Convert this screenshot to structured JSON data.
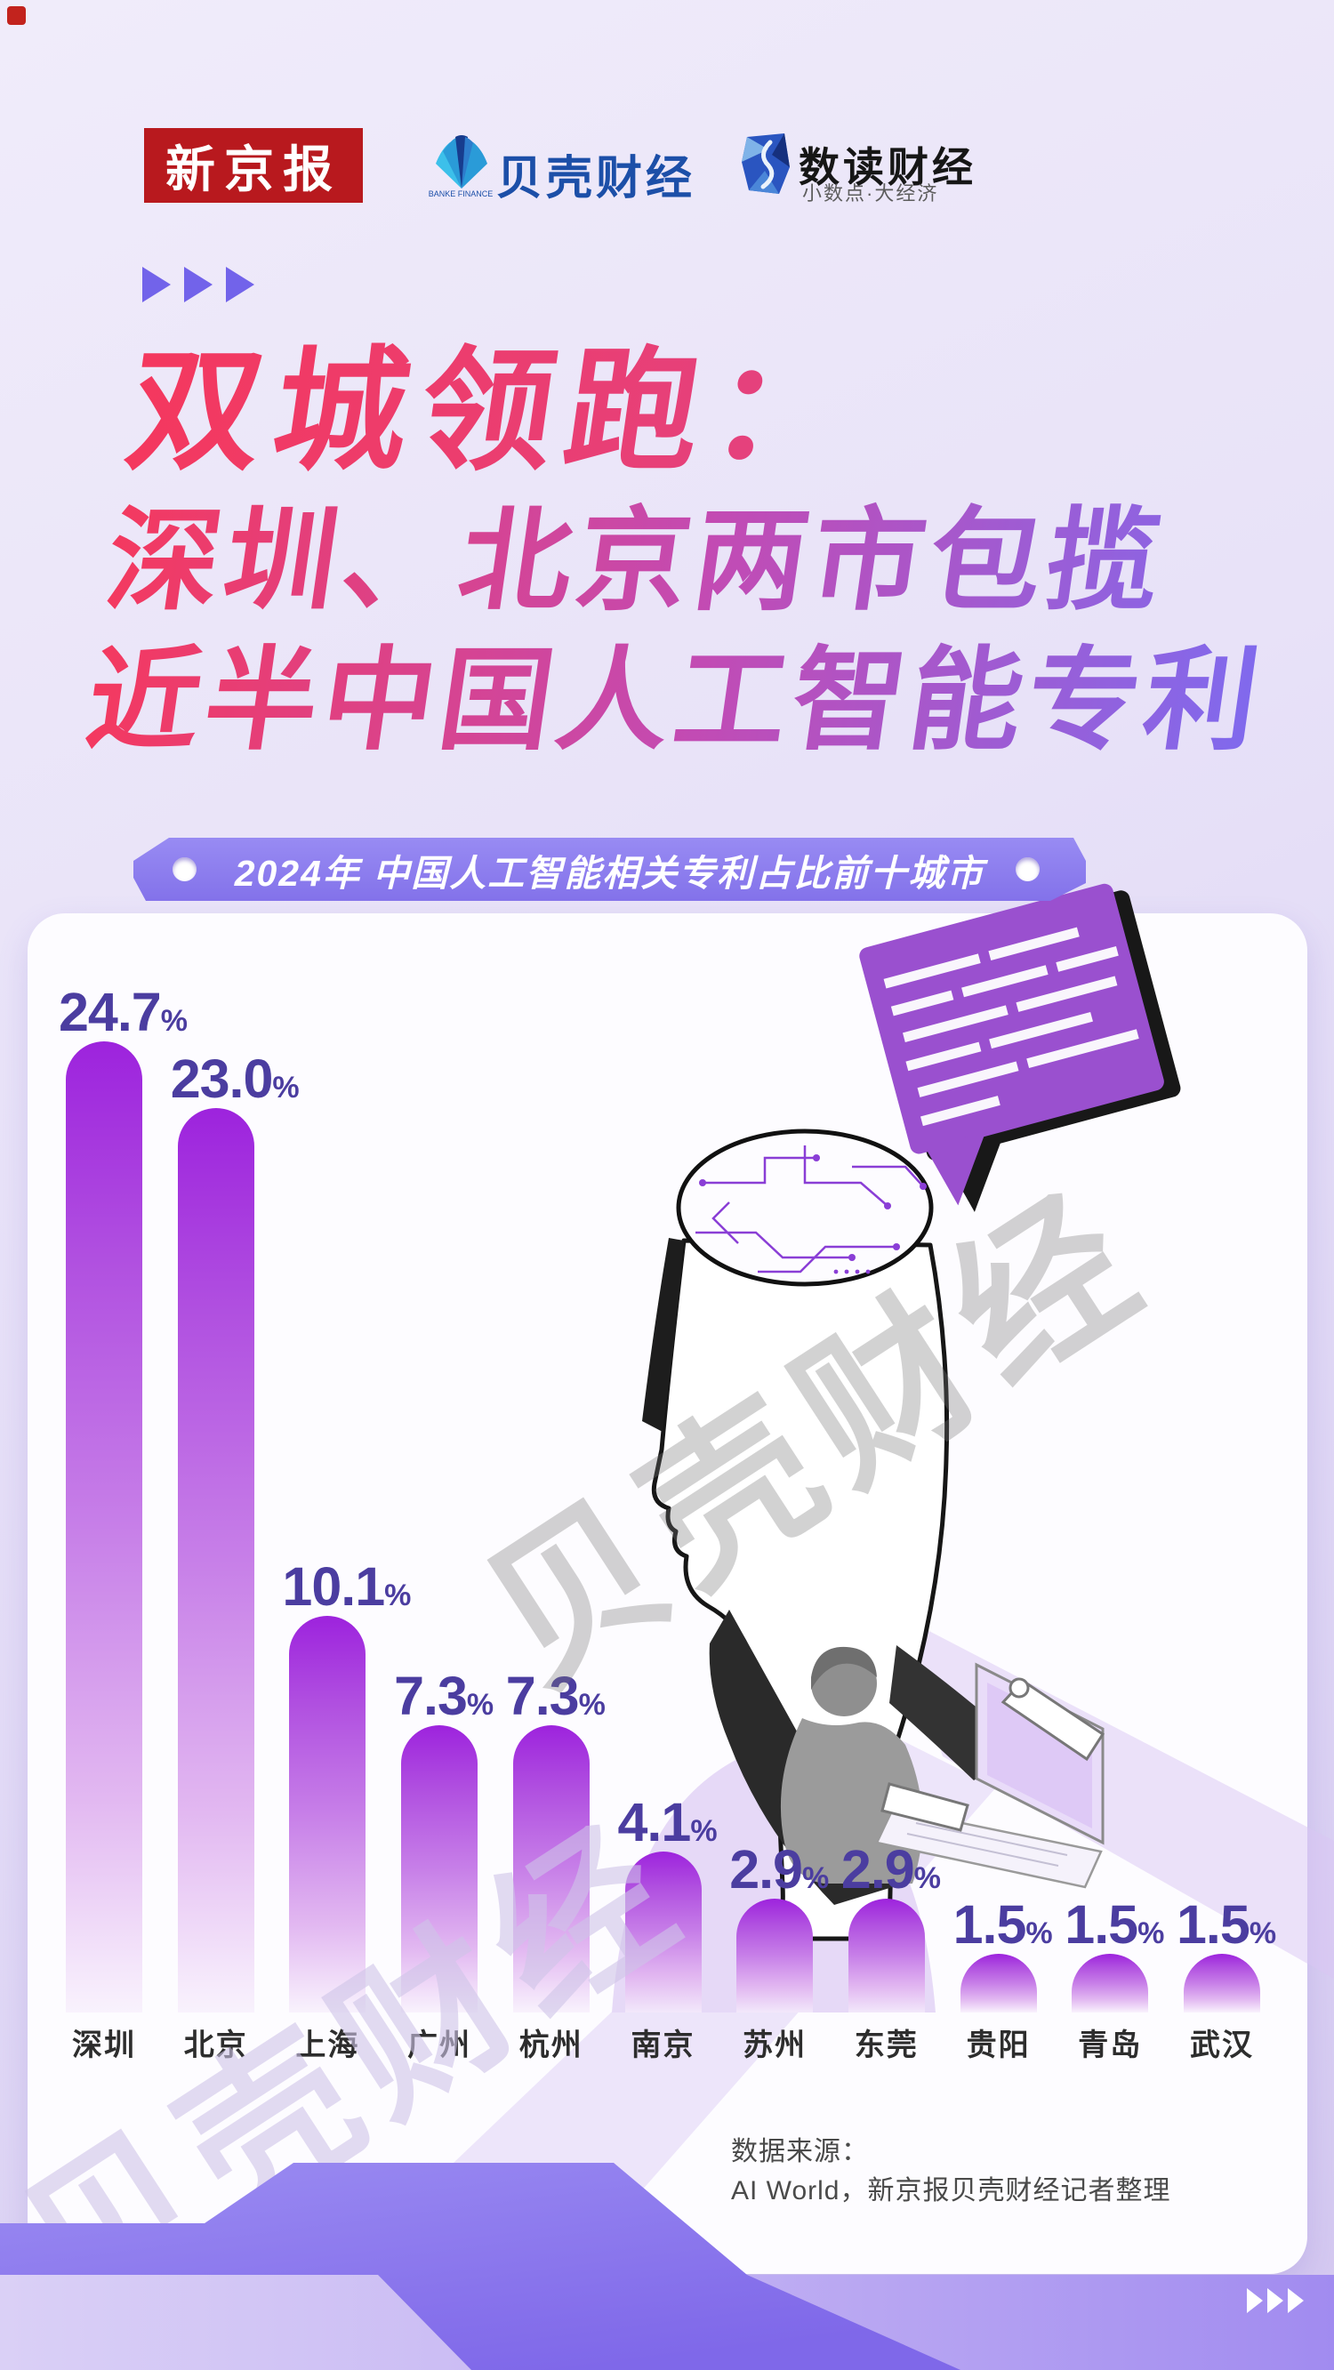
{
  "header": {
    "brand_xjb": "新京报",
    "brand_bk": "贝壳财经",
    "brand_bk_caption": "BANKE FINANCE",
    "brand_sd": "数读财经",
    "brand_sd_sub": "小数点·大经济"
  },
  "title": {
    "line1": "双城领跑：",
    "line2": "深圳、北京两市包揽",
    "line3": "近半中国人工智能专利"
  },
  "banner": {
    "text": "2024年 中国人工智能相关专利占比前十城市"
  },
  "chart_data": {
    "type": "bar",
    "title": "2024年 中国人工智能相关专利占比前十城市",
    "categories": [
      "深圳",
      "北京",
      "上海",
      "广州",
      "杭州",
      "南京",
      "苏州",
      "东莞",
      "贵阳",
      "青岛",
      "武汉"
    ],
    "values": [
      24.7,
      23.0,
      10.1,
      7.3,
      7.3,
      4.1,
      2.9,
      2.9,
      1.5,
      1.5,
      1.5
    ],
    "labels": [
      "24.7",
      "23.0",
      "10.1",
      "7.3",
      "7.3",
      "4.1",
      "2.9",
      "2.9",
      "1.5",
      "1.5",
      "1.5"
    ],
    "unit": "%",
    "xlabel": "",
    "ylabel": "专利占比",
    "ylim": [
      0,
      25
    ],
    "grid": false,
    "legend": "none",
    "bar_color_top": "#9d23dd",
    "bar_color_bottom": "#f2e6fa",
    "value_label_color": "#4b3da0"
  },
  "source": {
    "line1": "数据来源：",
    "line2": "AI World，新京报贝壳财经记者整理"
  },
  "watermark": "贝壳财经",
  "colors": {
    "background": "#e6dff7",
    "banner": "#8a7aee",
    "title_pink": "#f4385e",
    "title_violet": "#7f6aee",
    "bubble": "#9a50cf",
    "band_purple": "#8f7bef"
  }
}
